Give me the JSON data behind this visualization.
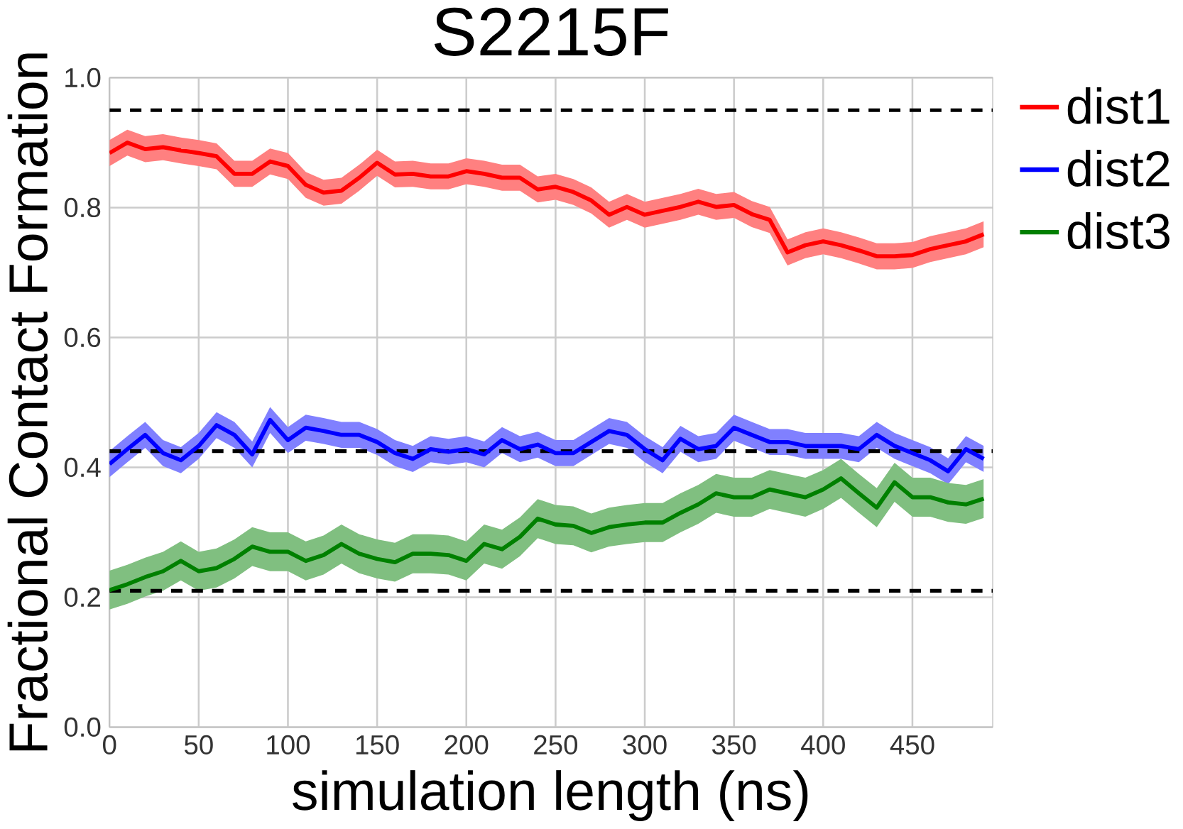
{
  "chart_data": {
    "type": "line",
    "title": "S2215F",
    "xlabel": "simulation length (ns)",
    "ylabel": "Fractional Contact Formation",
    "x": [
      0,
      10,
      20,
      30,
      40,
      50,
      60,
      70,
      80,
      90,
      100,
      110,
      120,
      130,
      140,
      150,
      160,
      170,
      180,
      190,
      200,
      210,
      220,
      230,
      240,
      250,
      260,
      270,
      280,
      290,
      300,
      310,
      320,
      330,
      340,
      350,
      360,
      370,
      380,
      390,
      400,
      410,
      420,
      430,
      440,
      450,
      460,
      470,
      480,
      490
    ],
    "series": [
      {
        "name": "dist1",
        "color": "#ff0000",
        "values": [
          0.884,
          0.9,
          0.89,
          0.893,
          0.888,
          0.884,
          0.879,
          0.852,
          0.852,
          0.871,
          0.864,
          0.835,
          0.823,
          0.826,
          0.846,
          0.869,
          0.851,
          0.852,
          0.848,
          0.848,
          0.856,
          0.852,
          0.846,
          0.846,
          0.828,
          0.832,
          0.824,
          0.811,
          0.789,
          0.801,
          0.789,
          0.795,
          0.801,
          0.809,
          0.801,
          0.804,
          0.79,
          0.781,
          0.731,
          0.742,
          0.748,
          0.742,
          0.734,
          0.725,
          0.725,
          0.727,
          0.736,
          0.742,
          0.748,
          0.759
        ],
        "upper": [
          0.904,
          0.92,
          0.91,
          0.913,
          0.908,
          0.904,
          0.899,
          0.872,
          0.872,
          0.891,
          0.884,
          0.855,
          0.843,
          0.846,
          0.866,
          0.889,
          0.871,
          0.872,
          0.868,
          0.868,
          0.876,
          0.872,
          0.866,
          0.866,
          0.848,
          0.852,
          0.844,
          0.831,
          0.809,
          0.821,
          0.809,
          0.815,
          0.821,
          0.829,
          0.821,
          0.824,
          0.81,
          0.801,
          0.751,
          0.762,
          0.768,
          0.762,
          0.754,
          0.745,
          0.745,
          0.747,
          0.756,
          0.762,
          0.768,
          0.779
        ],
        "lower": [
          0.864,
          0.88,
          0.87,
          0.873,
          0.868,
          0.864,
          0.859,
          0.832,
          0.832,
          0.851,
          0.844,
          0.815,
          0.803,
          0.806,
          0.826,
          0.849,
          0.831,
          0.832,
          0.828,
          0.828,
          0.836,
          0.832,
          0.826,
          0.826,
          0.808,
          0.812,
          0.804,
          0.791,
          0.769,
          0.781,
          0.769,
          0.775,
          0.781,
          0.789,
          0.781,
          0.784,
          0.77,
          0.761,
          0.711,
          0.722,
          0.728,
          0.722,
          0.714,
          0.705,
          0.705,
          0.707,
          0.716,
          0.722,
          0.728,
          0.739
        ]
      },
      {
        "name": "dist2",
        "color": "#0000ff",
        "values": [
          0.405,
          0.428,
          0.45,
          0.422,
          0.411,
          0.433,
          0.465,
          0.45,
          0.42,
          0.473,
          0.442,
          0.461,
          0.456,
          0.45,
          0.45,
          0.439,
          0.422,
          0.413,
          0.428,
          0.424,
          0.428,
          0.42,
          0.442,
          0.428,
          0.435,
          0.422,
          0.422,
          0.439,
          0.456,
          0.45,
          0.428,
          0.411,
          0.444,
          0.428,
          0.433,
          0.461,
          0.45,
          0.439,
          0.439,
          0.433,
          0.433,
          0.433,
          0.428,
          0.45,
          0.433,
          0.422,
          0.411,
          0.394,
          0.428,
          0.413
        ],
        "upper": [
          0.425,
          0.448,
          0.47,
          0.442,
          0.431,
          0.453,
          0.485,
          0.47,
          0.44,
          0.493,
          0.462,
          0.481,
          0.476,
          0.47,
          0.47,
          0.459,
          0.442,
          0.433,
          0.448,
          0.444,
          0.448,
          0.44,
          0.462,
          0.448,
          0.455,
          0.442,
          0.442,
          0.459,
          0.476,
          0.47,
          0.448,
          0.431,
          0.464,
          0.448,
          0.453,
          0.481,
          0.47,
          0.459,
          0.459,
          0.453,
          0.453,
          0.453,
          0.448,
          0.47,
          0.453,
          0.442,
          0.431,
          0.414,
          0.448,
          0.433
        ],
        "lower": [
          0.385,
          0.408,
          0.43,
          0.402,
          0.391,
          0.413,
          0.445,
          0.43,
          0.4,
          0.453,
          0.422,
          0.441,
          0.436,
          0.43,
          0.43,
          0.419,
          0.402,
          0.393,
          0.408,
          0.404,
          0.408,
          0.4,
          0.422,
          0.408,
          0.415,
          0.402,
          0.402,
          0.419,
          0.436,
          0.43,
          0.408,
          0.391,
          0.424,
          0.408,
          0.413,
          0.441,
          0.43,
          0.419,
          0.419,
          0.413,
          0.413,
          0.413,
          0.408,
          0.43,
          0.413,
          0.402,
          0.391,
          0.374,
          0.408,
          0.393
        ]
      },
      {
        "name": "dist3",
        "color": "#008000",
        "values": [
          0.211,
          0.22,
          0.231,
          0.24,
          0.256,
          0.24,
          0.245,
          0.259,
          0.278,
          0.27,
          0.27,
          0.256,
          0.265,
          0.282,
          0.267,
          0.259,
          0.254,
          0.267,
          0.267,
          0.265,
          0.256,
          0.282,
          0.274,
          0.293,
          0.321,
          0.312,
          0.31,
          0.299,
          0.308,
          0.312,
          0.315,
          0.315,
          0.33,
          0.343,
          0.36,
          0.354,
          0.354,
          0.366,
          0.36,
          0.354,
          0.366,
          0.383,
          0.36,
          0.338,
          0.377,
          0.354,
          0.354,
          0.346,
          0.343,
          0.352
        ],
        "upper": [
          0.241,
          0.25,
          0.261,
          0.27,
          0.286,
          0.27,
          0.275,
          0.289,
          0.308,
          0.3,
          0.3,
          0.286,
          0.295,
          0.312,
          0.297,
          0.289,
          0.284,
          0.297,
          0.297,
          0.295,
          0.286,
          0.312,
          0.304,
          0.323,
          0.351,
          0.342,
          0.34,
          0.329,
          0.338,
          0.342,
          0.345,
          0.345,
          0.36,
          0.373,
          0.39,
          0.384,
          0.384,
          0.396,
          0.39,
          0.384,
          0.396,
          0.413,
          0.39,
          0.368,
          0.407,
          0.384,
          0.384,
          0.376,
          0.373,
          0.382
        ],
        "lower": [
          0.181,
          0.19,
          0.201,
          0.21,
          0.226,
          0.21,
          0.215,
          0.229,
          0.248,
          0.24,
          0.24,
          0.226,
          0.235,
          0.252,
          0.237,
          0.229,
          0.224,
          0.237,
          0.237,
          0.235,
          0.226,
          0.252,
          0.244,
          0.263,
          0.291,
          0.282,
          0.28,
          0.269,
          0.278,
          0.282,
          0.285,
          0.285,
          0.3,
          0.313,
          0.33,
          0.324,
          0.324,
          0.336,
          0.33,
          0.324,
          0.336,
          0.353,
          0.33,
          0.308,
          0.347,
          0.324,
          0.324,
          0.316,
          0.313,
          0.322
        ]
      }
    ],
    "ref_lines": [
      {
        "axis": "y",
        "value": 0.95,
        "color": "#000000",
        "line_style": "dashed"
      },
      {
        "axis": "y",
        "value": 0.425,
        "color": "#000000",
        "line_style": "dashed"
      },
      {
        "axis": "y",
        "value": 0.21,
        "color": "#000000",
        "line_style": "dashed"
      }
    ],
    "xlim": [
      0,
      495
    ],
    "ylim": [
      0,
      1
    ],
    "xticks": [
      0,
      50,
      100,
      150,
      200,
      250,
      300,
      350,
      400,
      450
    ],
    "yticks": [
      {
        "value": 0,
        "label": "0.0"
      },
      {
        "value": 0.2,
        "label": "0.2"
      },
      {
        "value": 0.4,
        "label": "0.4"
      },
      {
        "value": 0.6,
        "label": "0.6"
      },
      {
        "value": 0.8,
        "label": "0.8"
      },
      {
        "value": 1,
        "label": "1.0"
      }
    ],
    "grid": true,
    "legend": "top right",
    "marker": "none",
    "line_style": "solid"
  }
}
